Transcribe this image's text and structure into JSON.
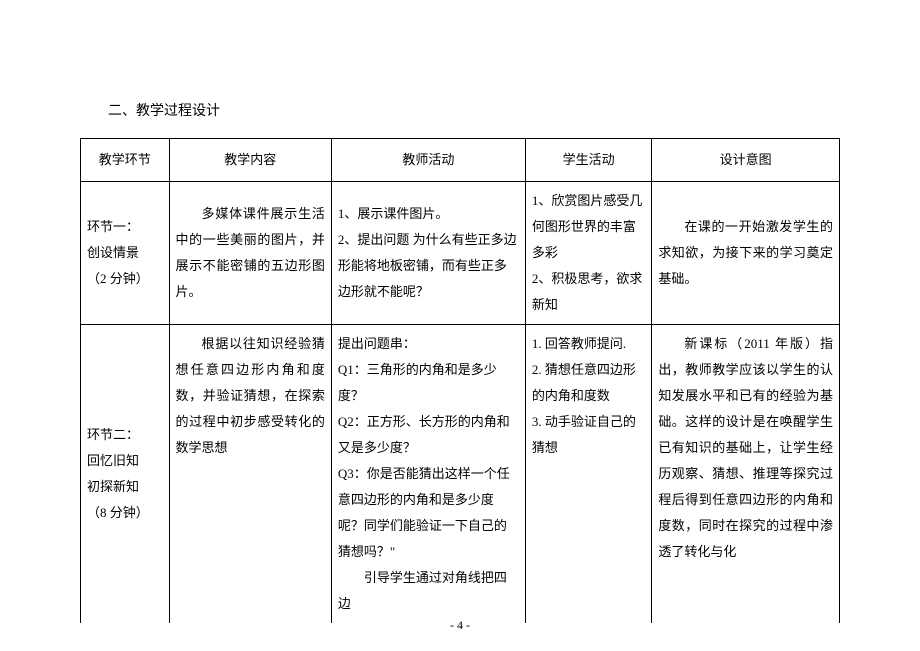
{
  "section_title": "二、教学过程设计",
  "table": {
    "headers": [
      "教学环节",
      "教学内容",
      "教师活动",
      "学生活动",
      "设计意图"
    ],
    "rows": [
      {
        "stage_lines": [
          "环节一：",
          "创设情景",
          "（2 分钟）"
        ],
        "content": "多媒体课件展示生活中的一些美丽的图片，并展示不能密铺的五边形图片。",
        "teacher_items": [
          "1、展示课件图片。",
          "2、提出问题  为什么有些正多边形能将地板密铺，而有些正多边形就不能呢？"
        ],
        "student_items": [
          "1、欣赏图片感受几何图形世界的丰富多彩",
          "2、积极思考，欲求新知"
        ],
        "intent": "在课的一开始激发学生的求知欲，为接下来的学习奠定基础。"
      },
      {
        "stage_lines": [
          "环节二：",
          "回忆旧知",
          "初探新知",
          "（8 分钟）"
        ],
        "content": "根据以往知识经验猜想任意四边形内角和度数，并验证猜想，在探索的过程中初步感受转化的数学思想",
        "teacher_intro": "提出问题串：",
        "teacher_items": [
          "Q1：三角形的内角和是多少度？",
          "Q2：正方形、长方形的内角和又是多少度？",
          "Q3：你是否能猜出这样一个任意四边形的内角和是多少度呢？同学们能验证一下自己的猜想吗？\""
        ],
        "teacher_tail": "引导学生通过对角线把四边",
        "student_items": [
          "1. 回答教师提问.",
          "2. 猜想任意四边形的内角和度数",
          "3. 动手验证自己的猜想"
        ],
        "intent": "新课标（2011 年版）指出，教师教学应该以学生的认知发展水平和已有的经验为基础。这样的设计是在唤醒学生已有知识的基础上，让学生经历观察、猜想、推理等探究过程后得到任意四边形的内角和度数，同时在探究的过程中渗透了转化与化"
      }
    ]
  },
  "page_number": "- 4 -"
}
